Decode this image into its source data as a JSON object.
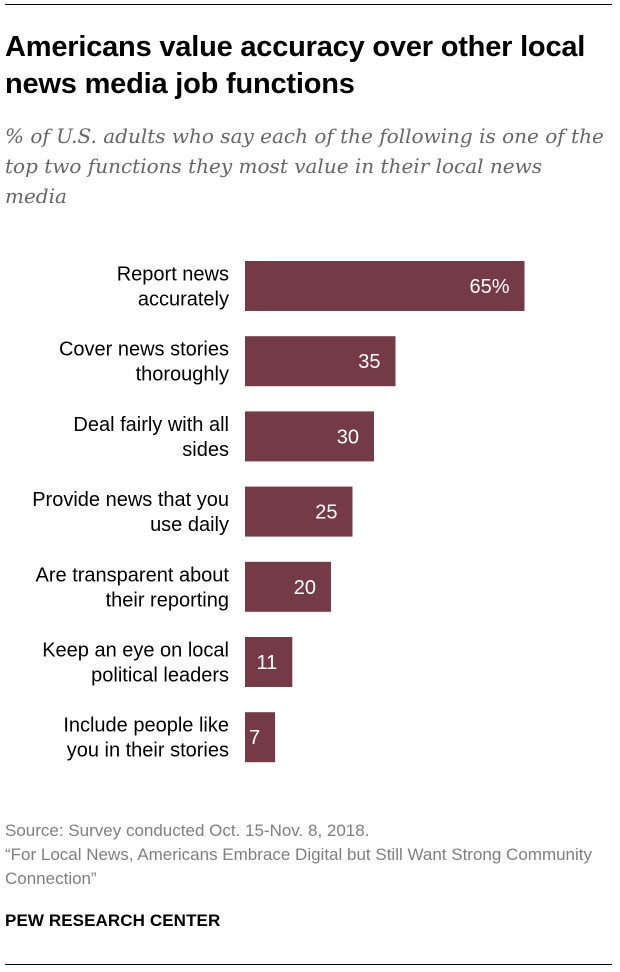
{
  "title": "Americans value accuracy over other local news media job functions",
  "subtitle": "% of U.S. adults who say each of the following is one of the top two functions they most value in their local news media",
  "chart_data": {
    "type": "bar",
    "orientation": "horizontal",
    "categories": [
      [
        "Report news",
        "accurately"
      ],
      [
        "Cover news stories",
        "thoroughly"
      ],
      [
        "Deal fairly with all",
        "sides"
      ],
      [
        "Provide news that you",
        "use daily"
      ],
      [
        "Are transparent about",
        "their reporting"
      ],
      [
        "Keep an eye on local",
        "political leaders"
      ],
      [
        "Include people like",
        "you in their stories"
      ]
    ],
    "values": [
      65,
      35,
      30,
      25,
      20,
      11,
      7
    ],
    "value_labels": [
      "65%",
      "35",
      "30",
      "25",
      "20",
      "11",
      "7"
    ],
    "xlim": [
      0,
      100
    ],
    "bar_color": "#743b46",
    "label_color": "#ffffff",
    "grid": false,
    "legend": "none"
  },
  "source": {
    "line1": "Source: Survey conducted Oct. 15-Nov. 8, 2018.",
    "line2": "“For Local News, Americans Embrace Digital but Still Want Strong Community Connection”"
  },
  "brand": "PEW RESEARCH CENTER"
}
